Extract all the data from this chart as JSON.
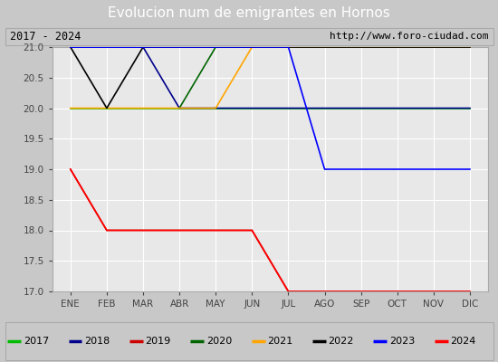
{
  "title": "Evolucion num de emigrantes en Hornos",
  "subtitle_left": "2017 - 2024",
  "subtitle_right": "http://www.foro-ciudad.com",
  "x_labels": [
    "ENE",
    "FEB",
    "MAR",
    "ABR",
    "MAY",
    "JUN",
    "JUL",
    "AGO",
    "SEP",
    "OCT",
    "NOV",
    "DIC"
  ],
  "ylim": [
    17.0,
    21.0
  ],
  "yticks": [
    17.0,
    17.5,
    18.0,
    18.5,
    19.0,
    19.5,
    20.0,
    20.5,
    21.0
  ],
  "series": [
    {
      "label": "2017",
      "color": "#00bb00",
      "x": [
        0,
        11
      ],
      "y": [
        20,
        20
      ]
    },
    {
      "label": "2018",
      "color": "#00008b",
      "x": [
        0,
        2,
        3,
        4,
        11
      ],
      "y": [
        21,
        21,
        20,
        20,
        20
      ]
    },
    {
      "label": "2019",
      "color": "#cc0000",
      "x": [
        0,
        1,
        2,
        3,
        4,
        5,
        6,
        11
      ],
      "y": [
        19,
        18,
        18,
        18,
        18,
        18,
        17,
        17
      ]
    },
    {
      "label": "2020",
      "color": "#006400",
      "x": [
        3,
        4,
        11
      ],
      "y": [
        20,
        21,
        21
      ]
    },
    {
      "label": "2021",
      "color": "#ffa500",
      "x": [
        0,
        4,
        5,
        11
      ],
      "y": [
        20,
        20,
        21,
        21
      ]
    },
    {
      "label": "2022",
      "color": "#000000",
      "x": [
        0,
        1,
        2,
        11
      ],
      "y": [
        21,
        20,
        21,
        21
      ]
    },
    {
      "label": "2023",
      "color": "#0000ff",
      "x": [
        0,
        6,
        7,
        11
      ],
      "y": [
        21,
        21,
        19,
        19
      ]
    },
    {
      "label": "2024",
      "color": "#ff0000",
      "x": [
        0,
        1,
        2,
        3,
        4,
        5,
        6,
        7,
        11
      ],
      "y": [
        19,
        18,
        18,
        18,
        18,
        18,
        17,
        17,
        17
      ]
    }
  ],
  "title_bg_color": "#4f8fce",
  "title_font_color": "white",
  "plot_bg_color": "#e8e8e8",
  "grid_color": "white",
  "subtitle_box_color": "white",
  "legend_box_color": "white",
  "fig_width": 5.5,
  "fig_height": 4.0,
  "fig_dpi": 100
}
